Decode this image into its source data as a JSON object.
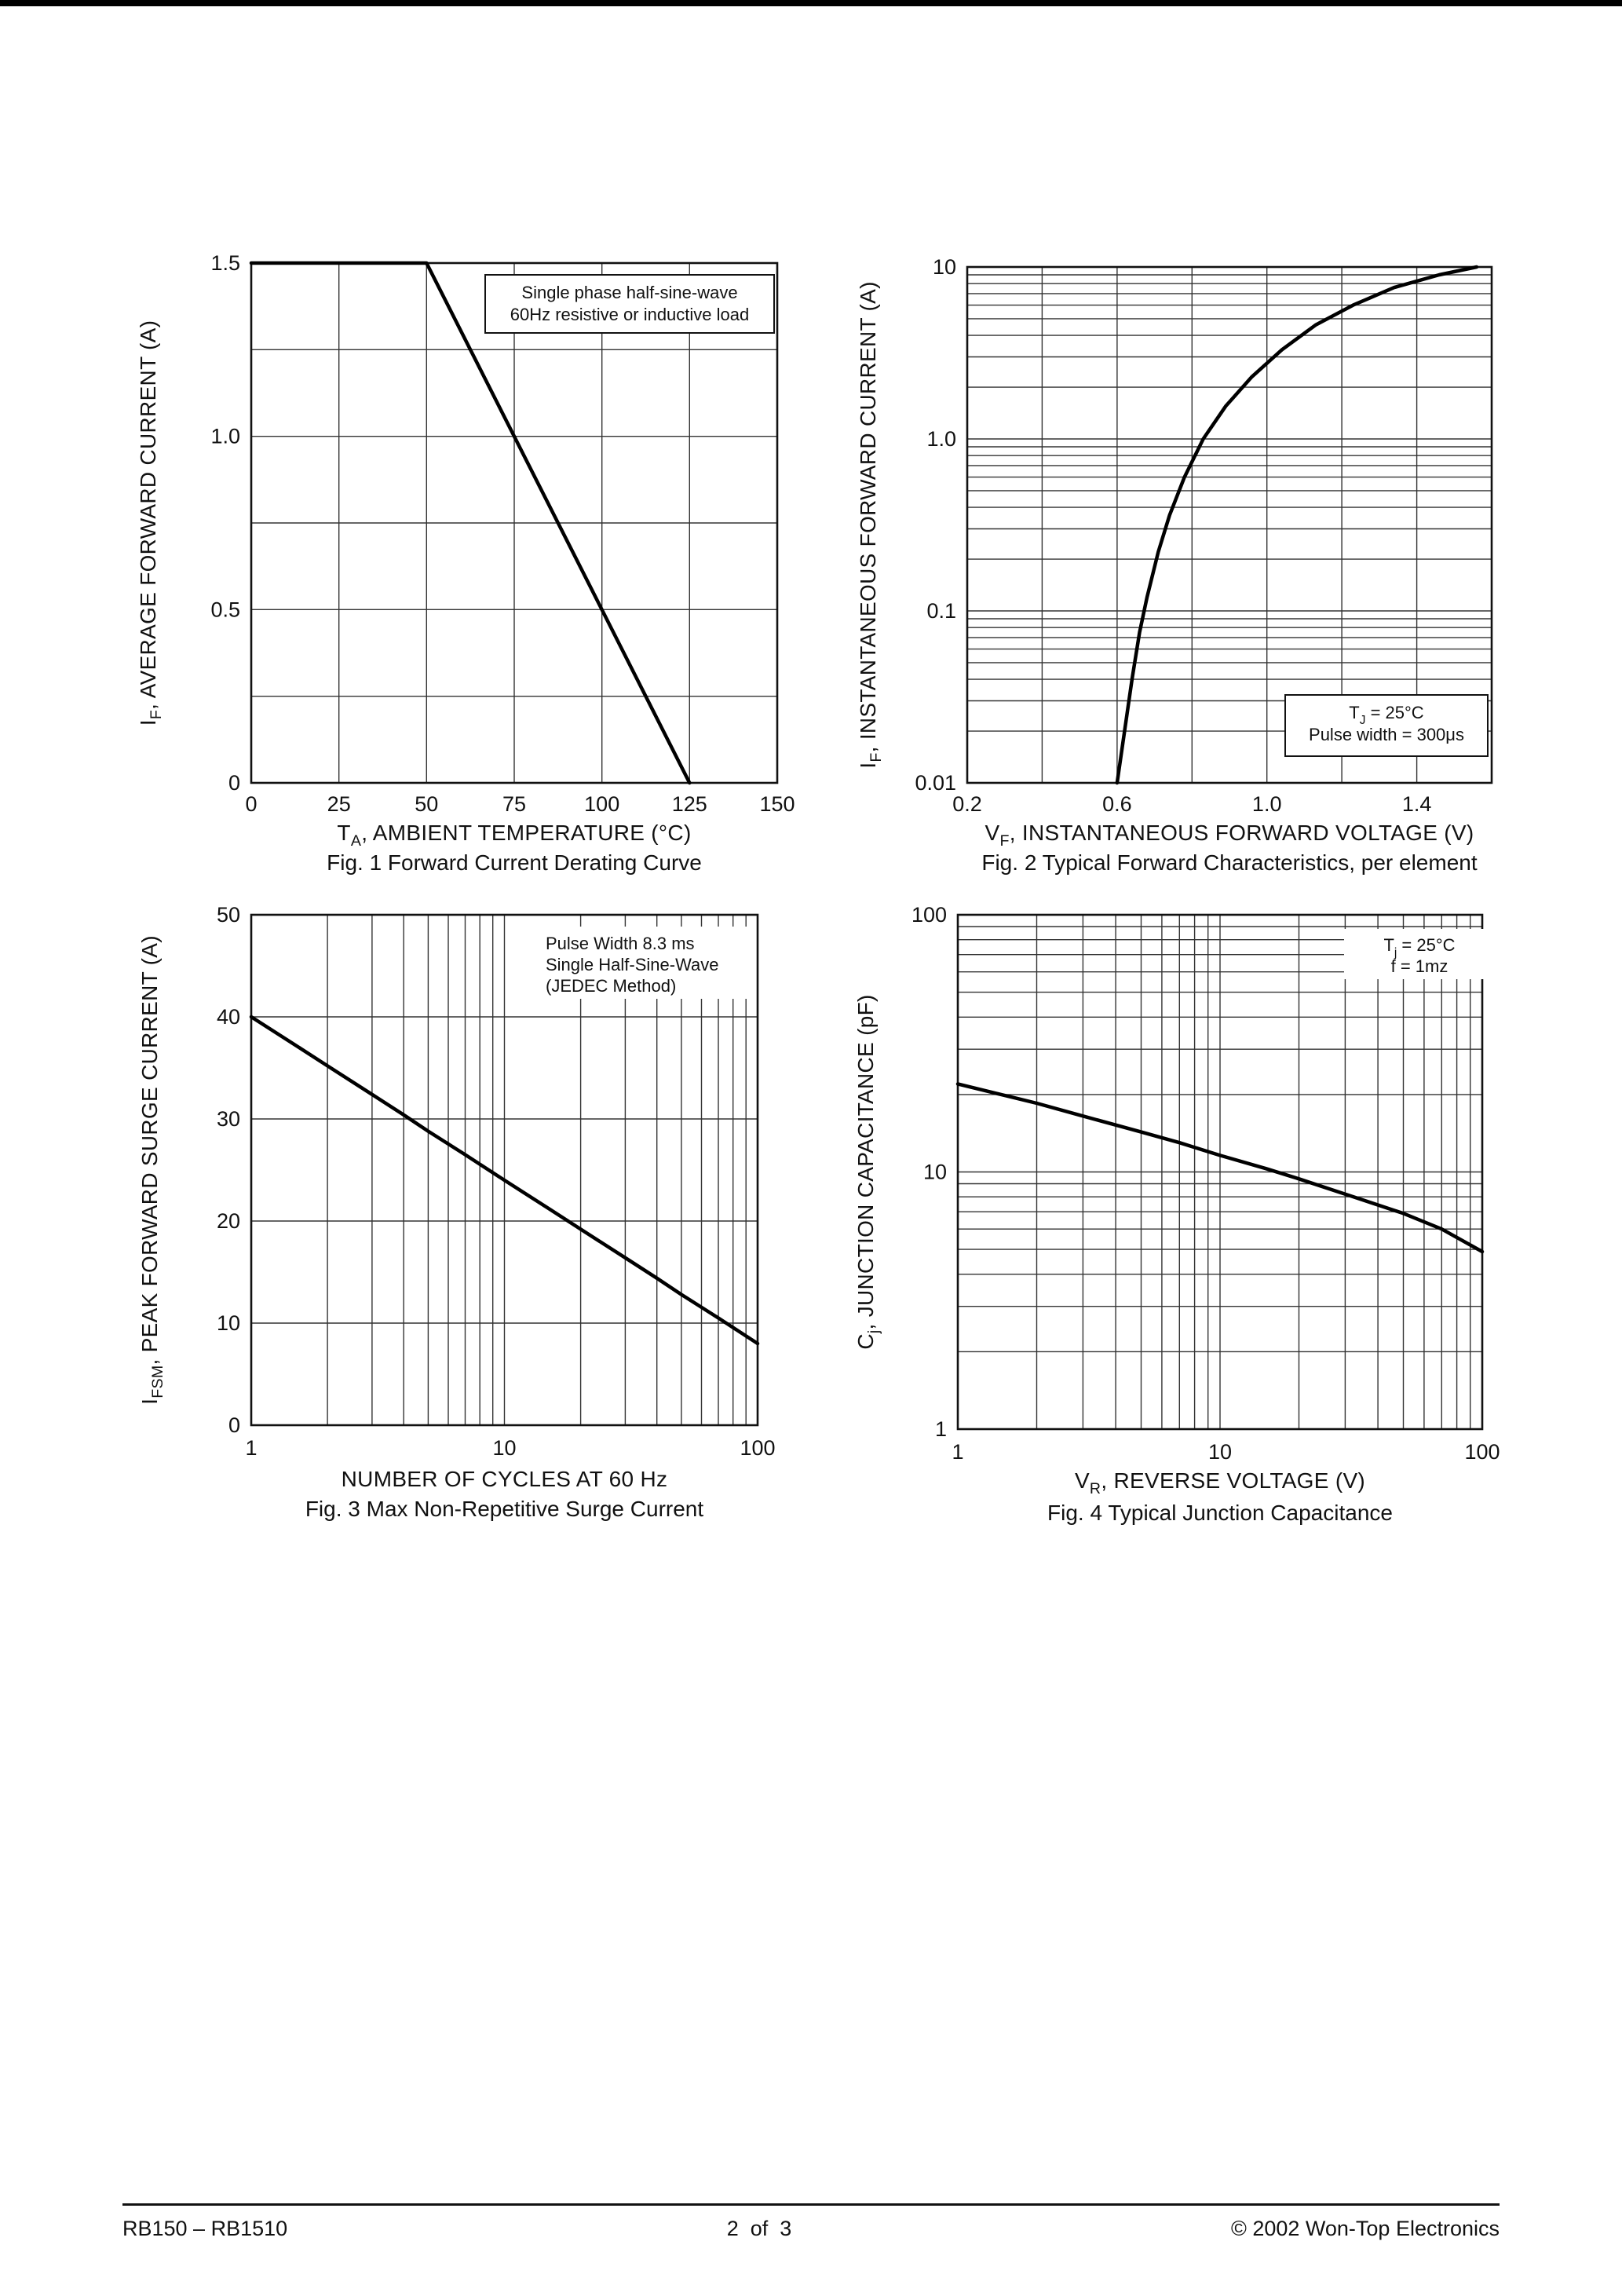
{
  "page": {
    "footer": {
      "left": "RB150 – RB1510",
      "center": "2  of  3",
      "right": "© 2002 Won-Top Electronics"
    }
  },
  "chart_data": [
    {
      "id": "fig1",
      "type": "line",
      "title": "Fig. 1  Forward Current Derating Curve",
      "xlabel": [
        "T",
        {
          "sub": "A"
        },
        ", AMBIENT TEMPERATURE (°C)"
      ],
      "ylabel": [
        "I",
        {
          "sub": "F"
        },
        ", AVERAGE FORWARD CURRENT (A)"
      ],
      "x_axis": {
        "scale": "linear",
        "min": 0,
        "max": 150,
        "step": 25,
        "ticks": [
          {
            "v": 0,
            "label": "0"
          },
          {
            "v": 25,
            "label": "25"
          },
          {
            "v": 50,
            "label": "50"
          },
          {
            "v": 75,
            "label": "75"
          },
          {
            "v": 100,
            "label": "100"
          },
          {
            "v": 125,
            "label": "125"
          },
          {
            "v": 150,
            "label": "150"
          }
        ]
      },
      "y_axis": {
        "scale": "linear",
        "min": 0,
        "max": 1.5,
        "step": 0.25,
        "ticks": [
          {
            "v": 0,
            "label": "0"
          },
          {
            "v": 0.5,
            "label": "0.5"
          },
          {
            "v": 1.0,
            "label": "1.0"
          },
          {
            "v": 1.5,
            "label": "1.5"
          }
        ]
      },
      "annotation": {
        "boxed": true,
        "align": "center",
        "lines": [
          [
            "Single phase half-sine-wave"
          ],
          [
            "60Hz resistive or inductive load"
          ]
        ]
      },
      "series": [
        {
          "name": "derating-curve",
          "points": [
            [
              0,
              1.5
            ],
            [
              50,
              1.5
            ],
            [
              125,
              0
            ]
          ]
        }
      ]
    },
    {
      "id": "fig2",
      "type": "line",
      "title": "Fig. 2  Typical Forward Characteristics, per element",
      "xlabel": [
        "V",
        {
          "sub": "F"
        },
        ", INSTANTANEOUS FORWARD VOLTAGE (V)"
      ],
      "ylabel": [
        "I",
        {
          "sub": "F"
        },
        ", INSTANTANEOUS FORWARD CURRENT (A)"
      ],
      "x_axis": {
        "scale": "linear",
        "min": 0.2,
        "max": 1.6,
        "step": 0.2,
        "ticks": [
          {
            "v": 0.2,
            "label": "0.2"
          },
          {
            "v": 0.6,
            "label": "0.6"
          },
          {
            "v": 1.0,
            "label": "1.0"
          },
          {
            "v": 1.4,
            "label": "1.4"
          }
        ]
      },
      "y_axis": {
        "scale": "log",
        "min": 0.01,
        "max": 10,
        "ticks": [
          {
            "v": 10,
            "label": "10"
          },
          {
            "v": 1,
            "label": "1.0"
          },
          {
            "v": 0.1,
            "label": "0.1"
          },
          {
            "v": 0.01,
            "label": "0.01"
          }
        ]
      },
      "annotation": {
        "boxed": true,
        "align": "center",
        "lines": [
          [
            "T",
            {
              "sub": "J"
            },
            " = 25°C"
          ],
          [
            "Pulse width = 300μs"
          ]
        ]
      },
      "series": [
        {
          "name": "forward-characteristic",
          "points": [
            [
              0.6,
              0.01
            ],
            [
              0.62,
              0.02
            ],
            [
              0.64,
              0.04
            ],
            [
              0.66,
              0.075
            ],
            [
              0.68,
              0.12
            ],
            [
              0.71,
              0.22
            ],
            [
              0.74,
              0.36
            ],
            [
              0.78,
              0.6
            ],
            [
              0.83,
              1.0
            ],
            [
              0.89,
              1.55
            ],
            [
              0.96,
              2.3
            ],
            [
              1.04,
              3.3
            ],
            [
              1.13,
              4.6
            ],
            [
              1.23,
              6.0
            ],
            [
              1.34,
              7.6
            ],
            [
              1.46,
              9.0
            ],
            [
              1.56,
              10
            ]
          ]
        }
      ]
    },
    {
      "id": "fig3",
      "type": "line",
      "title": "Fig. 3  Max Non-Repetitive Surge Current",
      "xlabel": [
        "NUMBER OF CYCLES AT 60 Hz"
      ],
      "ylabel": [
        "I",
        {
          "sub": "FSM"
        },
        ", PEAK FORWARD SURGE CURRENT (A)"
      ],
      "x_axis": {
        "scale": "log",
        "min": 1,
        "max": 100,
        "ticks": [
          {
            "v": 1,
            "label": "1"
          },
          {
            "v": 10,
            "label": "10"
          },
          {
            "v": 100,
            "label": "100"
          }
        ]
      },
      "y_axis": {
        "scale": "linear",
        "min": 0,
        "max": 50,
        "step": 10,
        "ticks": [
          {
            "v": 0,
            "label": "0"
          },
          {
            "v": 10,
            "label": "10"
          },
          {
            "v": 20,
            "label": "20"
          },
          {
            "v": 30,
            "label": "30"
          },
          {
            "v": 40,
            "label": "40"
          },
          {
            "v": 50,
            "label": "50"
          }
        ]
      },
      "annotation": {
        "boxed": false,
        "align": "left",
        "lines": [
          [
            "Pulse Width 8.3 ms"
          ],
          [
            "Single Half-Sine-Wave"
          ],
          [
            "(JEDEC Method)"
          ]
        ]
      },
      "series": [
        {
          "name": "surge-current",
          "points": [
            [
              1,
              40
            ],
            [
              1.5,
              37.2
            ],
            [
              2,
              35.2
            ],
            [
              3,
              32.4
            ],
            [
              4,
              30.4
            ],
            [
              5,
              28.8
            ],
            [
              7,
              26.5
            ],
            [
              10,
              24
            ],
            [
              15,
              21.2
            ],
            [
              20,
              19.2
            ],
            [
              30,
              16.4
            ],
            [
              40,
              14.4
            ],
            [
              50,
              12.8
            ],
            [
              70,
              10.5
            ],
            [
              100,
              8
            ]
          ]
        }
      ]
    },
    {
      "id": "fig4",
      "type": "line",
      "title": "Fig. 4  Typical Junction Capacitance",
      "xlabel": [
        "V",
        {
          "sub": "R"
        },
        ", REVERSE VOLTAGE (V)"
      ],
      "ylabel": [
        "C",
        {
          "sub": "j"
        },
        ", JUNCTION CAPACITANCE (pF)"
      ],
      "x_axis": {
        "scale": "log",
        "min": 1,
        "max": 100,
        "ticks": [
          {
            "v": 1,
            "label": "1"
          },
          {
            "v": 10,
            "label": "10"
          },
          {
            "v": 100,
            "label": "100"
          }
        ]
      },
      "y_axis": {
        "scale": "log",
        "min": 1,
        "max": 100,
        "ticks": [
          {
            "v": 1,
            "label": "1"
          },
          {
            "v": 10,
            "label": "10"
          },
          {
            "v": 100,
            "label": "100"
          }
        ]
      },
      "annotation": {
        "boxed": false,
        "align": "center",
        "lines": [
          [
            "T",
            {
              "sub": "j"
            },
            " = 25°C"
          ],
          [
            "f = 1mz"
          ]
        ]
      },
      "series": [
        {
          "name": "junction-capacitance",
          "points": [
            [
              1,
              22
            ],
            [
              2,
              18.5
            ],
            [
              3,
              16.5
            ],
            [
              5,
              14.3
            ],
            [
              7,
              13
            ],
            [
              10,
              11.6
            ],
            [
              15,
              10.3
            ],
            [
              20,
              9.4
            ],
            [
              30,
              8.2
            ],
            [
              50,
              6.9
            ],
            [
              70,
              6.0
            ],
            [
              100,
              4.9
            ]
          ]
        }
      ]
    }
  ]
}
